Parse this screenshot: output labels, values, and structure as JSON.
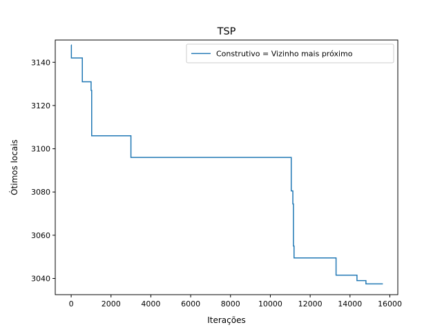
{
  "chart_data": {
    "type": "line",
    "title": "TSP",
    "xlabel": "Iterações",
    "ylabel": "Ótimos locais",
    "xlim": [
      -800,
      16400
    ],
    "ylim": [
      3032.5,
      3150.3
    ],
    "xticks": [
      0,
      2000,
      4000,
      6000,
      8000,
      10000,
      12000,
      14000,
      16000
    ],
    "yticks": [
      3040,
      3060,
      3080,
      3100,
      3120,
      3140
    ],
    "grid": false,
    "legend_position": "top-right",
    "series": [
      {
        "name": "Construtivo = Vizinho mais próximo",
        "color": "#1f77b4",
        "step": "post",
        "x": [
          0,
          10,
          560,
          1000,
          1030,
          3000,
          11050,
          11130,
          11160,
          11190,
          13300,
          14350,
          14800,
          15650
        ],
        "y": [
          3148,
          3142,
          3131,
          3127,
          3106,
          3096,
          3080.5,
          3074.5,
          3055,
          3049.5,
          3041.5,
          3039,
          3037.5,
          3037.5
        ]
      }
    ]
  }
}
